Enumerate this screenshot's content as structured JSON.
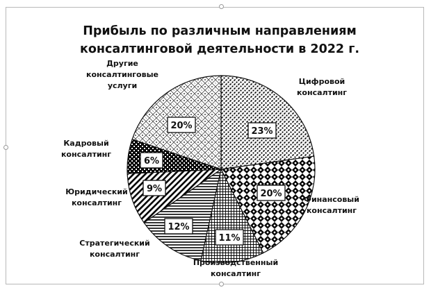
{
  "chart_data": {
    "type": "pie",
    "title": [
      "Прибыль по различным направлениям",
      "консалтинговой деятельности в 2022 г."
    ],
    "slices": [
      {
        "label": [
          "Цифровой",
          "консалтинг"
        ],
        "value": 23,
        "value_label": "23%",
        "pattern": "dots-grid"
      },
      {
        "label": [
          "Финансовый",
          "консалтинг"
        ],
        "value": 20,
        "value_label": "20%",
        "pattern": "checker-diamond"
      },
      {
        "label": [
          "Производственный",
          "консалтинг"
        ],
        "value": 11,
        "value_label": "11%",
        "pattern": "grid-fine"
      },
      {
        "label": [
          "Стратегический",
          "консалтинг"
        ],
        "value": 12,
        "value_label": "12%",
        "pattern": "horizontal-lines"
      },
      {
        "label": [
          "Юридический",
          "консалтинг"
        ],
        "value": 9,
        "value_label": "9%",
        "pattern": "diagonal-lines"
      },
      {
        "label": [
          "Кадровый",
          "консалтинг"
        ],
        "value": 6,
        "value_label": "6%",
        "pattern": "dark-check"
      },
      {
        "label": [
          "Другие",
          "консалтинговые",
          "услуги"
        ],
        "value": 20,
        "value_label": "20%",
        "pattern": "light-diamond"
      }
    ],
    "legend": "none",
    "labels": "outside slices, percentages in boxes inside slices"
  }
}
